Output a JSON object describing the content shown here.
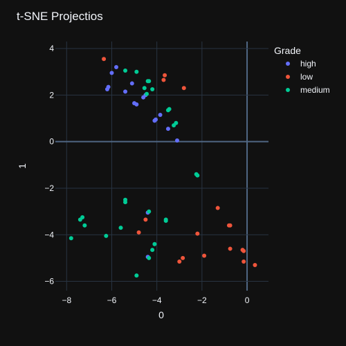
{
  "chart_data": {
    "type": "scatter",
    "title": "t-SNE Projectios",
    "xlabel": "0",
    "ylabel": "1",
    "xlim": [
      -8.5,
      0.95
    ],
    "ylim": [
      -6.4,
      4.3
    ],
    "xticks": [
      -8,
      -6,
      -4,
      -2,
      0
    ],
    "yticks": [
      -6,
      -4,
      -2,
      0,
      2,
      4
    ],
    "grid": true,
    "legend": {
      "title": "Grade",
      "placement": "right"
    },
    "series": [
      {
        "name": "high",
        "color": "#636efa",
        "points": [
          [
            -5.8,
            3.2
          ],
          [
            -6.0,
            2.95
          ],
          [
            -6.15,
            2.35
          ],
          [
            -6.2,
            2.25
          ],
          [
            -5.1,
            2.5
          ],
          [
            -5.4,
            2.15
          ],
          [
            -5.0,
            1.65
          ],
          [
            -4.9,
            1.6
          ],
          [
            -4.6,
            1.9
          ],
          [
            -4.5,
            2.0
          ],
          [
            -3.85,
            1.15
          ],
          [
            -4.05,
            0.95
          ],
          [
            -4.1,
            0.9
          ],
          [
            -3.5,
            0.55
          ],
          [
            -3.1,
            0.05
          ],
          [
            -4.4,
            -3.05
          ],
          [
            -4.4,
            -4.95
          ]
        ]
      },
      {
        "name": "low",
        "color": "#ef553b",
        "points": [
          [
            -6.35,
            3.55
          ],
          [
            -3.65,
            2.85
          ],
          [
            -3.7,
            2.65
          ],
          [
            -2.8,
            2.3
          ],
          [
            -4.8,
            -3.9
          ],
          [
            -4.5,
            -3.35
          ],
          [
            -3.0,
            -5.15
          ],
          [
            -2.85,
            -5.0
          ],
          [
            -2.2,
            -3.95
          ],
          [
            -1.9,
            -4.9
          ],
          [
            -1.3,
            -2.85
          ],
          [
            -0.8,
            -3.6
          ],
          [
            -0.75,
            -3.6
          ],
          [
            -0.75,
            -4.6
          ],
          [
            -0.2,
            -4.65
          ],
          [
            -0.15,
            -4.7
          ],
          [
            -0.15,
            -5.15
          ],
          [
            0.35,
            -5.3
          ]
        ]
      },
      {
        "name": "medium",
        "color": "#00cc96",
        "points": [
          [
            -5.4,
            3.05
          ],
          [
            -4.9,
            3.0
          ],
          [
            -4.4,
            2.6
          ],
          [
            -4.35,
            2.6
          ],
          [
            -4.55,
            2.3
          ],
          [
            -4.2,
            2.25
          ],
          [
            -4.45,
            2.05
          ],
          [
            -3.45,
            1.4
          ],
          [
            -3.5,
            1.35
          ],
          [
            -3.25,
            0.7
          ],
          [
            -3.15,
            0.8
          ],
          [
            -2.25,
            -1.4
          ],
          [
            -2.2,
            -1.45
          ],
          [
            -5.4,
            -2.5
          ],
          [
            -5.4,
            -2.6
          ],
          [
            -4.35,
            -3.0
          ],
          [
            -3.6,
            -3.35
          ],
          [
            -3.6,
            -3.4
          ],
          [
            -5.6,
            -3.7
          ],
          [
            -7.3,
            -3.25
          ],
          [
            -7.4,
            -3.35
          ],
          [
            -7.2,
            -3.6
          ],
          [
            -7.8,
            -4.15
          ],
          [
            -6.25,
            -4.05
          ],
          [
            -4.1,
            -4.4
          ],
          [
            -4.2,
            -4.65
          ],
          [
            -4.35,
            -5.0
          ],
          [
            -4.9,
            -5.75
          ]
        ]
      }
    ]
  }
}
